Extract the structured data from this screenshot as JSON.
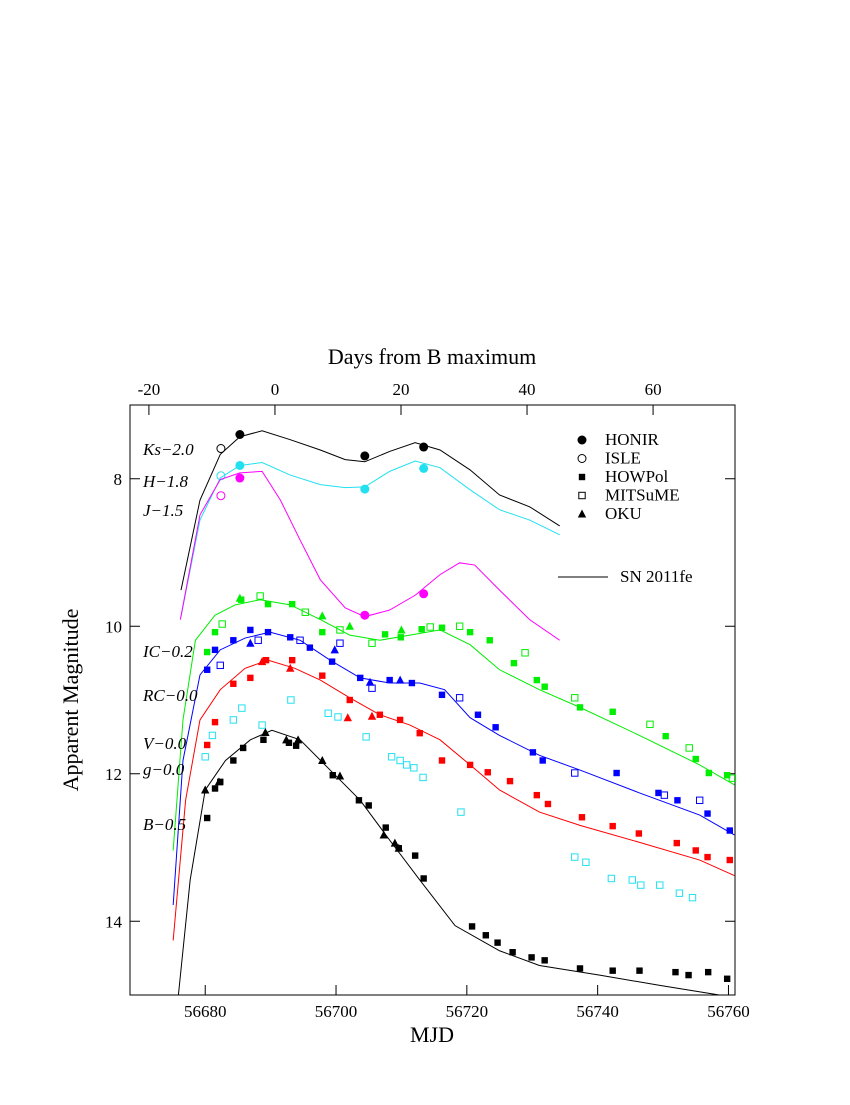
{
  "chart_data": {
    "type": "scatter",
    "xlabel": "MJD",
    "ylabel": "Apparent Magnitude",
    "x2label": "Days from B maximum",
    "xlim": [
      56668.5,
      56761
    ],
    "xticks": [
      56680,
      56700,
      56720,
      56740,
      56760
    ],
    "ylim": [
      15,
      7
    ],
    "yticks": [
      8,
      10,
      12,
      14
    ],
    "x2lim": [
      -23,
      73
    ],
    "x2ticks": [
      -20,
      0,
      20,
      40,
      60
    ],
    "instruments": [
      {
        "name": "HONIR",
        "marker": "filled-circle"
      },
      {
        "name": "ISLE",
        "marker": "open-circle"
      },
      {
        "name": "HOWPol",
        "marker": "filled-square"
      },
      {
        "name": "MITSuME",
        "marker": "open-square"
      },
      {
        "name": "OKU",
        "marker": "filled-triangle"
      }
    ],
    "model_name": "SN 2011fe",
    "bands": [
      {
        "label": "Ks−2.0",
        "color": "#000000",
        "model": {
          "x": [
            56676.3,
            56679.2,
            56682.3,
            56685.3,
            56688.7,
            56693.0,
            56697.6,
            56701.4,
            56704.4,
            56708.2,
            56712.1,
            56715.9,
            56720.5,
            56725.0,
            56729.6,
            56734.2
          ],
          "values": [
            9.51,
            8.29,
            7.67,
            7.43,
            7.35,
            7.47,
            7.61,
            7.74,
            7.77,
            7.63,
            7.51,
            7.61,
            7.88,
            8.22,
            8.38,
            8.64
          ]
        },
        "data": [
          {
            "instrument": 0,
            "x": [
              56685.3,
              56704.4,
              56713.4
            ],
            "values": [
              7.4,
              7.69,
              7.57
            ]
          },
          {
            "instrument": 1,
            "x": [
              56682.4
            ],
            "values": [
              7.59
            ]
          }
        ]
      },
      {
        "label": "H−1.8",
        "color": "#22e0f0",
        "model": {
          "x": [
            56676.3,
            56679.2,
            56682.3,
            56685.3,
            56688.7,
            56693.0,
            56697.6,
            56701.4,
            56704.4,
            56708.2,
            56712.1,
            56715.9,
            56720.5,
            56725.0,
            56729.6,
            56734.2
          ],
          "values": [
            9.87,
            8.56,
            7.99,
            7.82,
            7.78,
            7.95,
            8.08,
            8.12,
            8.11,
            7.9,
            7.76,
            7.85,
            8.15,
            8.42,
            8.56,
            8.76
          ]
        },
        "data": [
          {
            "instrument": 0,
            "x": [
              56685.3,
              56704.4,
              56713.4
            ],
            "values": [
              7.82,
              8.14,
              7.86
            ]
          },
          {
            "instrument": 1,
            "x": [
              56682.4
            ],
            "values": [
              7.96
            ]
          }
        ]
      },
      {
        "label": "J−1.5",
        "color": "#ff00ff",
        "model": {
          "x": [
            56676.2,
            56679.2,
            56682.3,
            56685.3,
            56688.7,
            56691.5,
            56694.5,
            56697.6,
            56701.4,
            56704.4,
            56708.2,
            56712.1,
            56715.9,
            56718.9,
            56721.2,
            56725.0,
            56729.6,
            56734.2
          ],
          "values": [
            9.91,
            8.49,
            8.01,
            7.92,
            7.9,
            8.29,
            8.83,
            9.37,
            9.75,
            9.87,
            9.78,
            9.58,
            9.3,
            9.14,
            9.17,
            9.51,
            9.91,
            10.19
          ]
        },
        "data": [
          {
            "instrument": 0,
            "x": [
              56685.3,
              56704.4,
              56713.4
            ],
            "values": [
              7.99,
              9.85,
              9.56
            ]
          },
          {
            "instrument": 1,
            "x": [
              56682.4
            ],
            "values": [
              8.23
            ]
          }
        ]
      },
      {
        "label": "IC−0.2",
        "color": "#00ee00",
        "model": {
          "x": [
            56675.1,
            56676.6,
            56678.5,
            56681.5,
            56684.6,
            56688.4,
            56693.0,
            56697.6,
            56702.1,
            56706.7,
            56711.3,
            56715.9,
            56720.5,
            56725.0,
            56731.1,
            56737.3,
            56746.4,
            56755.6,
            56760.9
          ],
          "values": [
            13.04,
            11.27,
            10.19,
            9.85,
            9.71,
            9.64,
            9.71,
            9.91,
            10.12,
            10.19,
            10.12,
            10.05,
            10.25,
            10.59,
            10.86,
            11.1,
            11.48,
            11.88,
            12.15
          ]
        },
        "data": [
          {
            "instrument": 2,
            "x": [
              56680.3,
              56681.5,
              56685.5,
              56689.6,
              56693.3,
              56697.9,
              56707.5,
              56709.9,
              56713.1,
              56716.2,
              56720.5,
              56723.5,
              56727.2,
              56730.7,
              56731.9,
              56737.3,
              56742.3,
              56750.4,
              56755.0,
              56757.0,
              56759.8
            ],
            "values": [
              10.35,
              10.08,
              9.64,
              9.7,
              9.7,
              10.08,
              10.11,
              10.15,
              10.04,
              10.02,
              10.08,
              10.19,
              10.5,
              10.73,
              10.82,
              11.1,
              11.16,
              11.49,
              11.8,
              11.99,
              12.02
            ]
          },
          {
            "instrument": 3,
            "x": [
              56682.6,
              56688.4,
              56695.3,
              56700.6,
              56705.5,
              56714.4,
              56718.9,
              56728.9,
              56736.5,
              56748.0,
              56754.0,
              56760.6
            ],
            "values": [
              9.97,
              9.59,
              9.81,
              10.05,
              10.23,
              10.01,
              10.0,
              10.36,
              10.97,
              11.33,
              11.65,
              12.06
            ]
          },
          {
            "instrument": 4,
            "x": [
              56685.3,
              56697.9,
              56702.1,
              56710.0
            ],
            "values": [
              9.62,
              9.86,
              10.0,
              10.05
            ]
          }
        ]
      },
      {
        "label": "RC−0.0",
        "color": "#0000ff",
        "model": {
          "x": [
            56675.1,
            56676.6,
            56679.2,
            56682.3,
            56686.1,
            56689.9,
            56694.5,
            56699.1,
            56703.7,
            56708.2,
            56712.8,
            56716.6,
            56720.5,
            56725.0,
            56731.1,
            56737.3,
            56746.4,
            56755.6,
            56760.9
          ],
          "values": [
            13.78,
            11.82,
            10.66,
            10.32,
            10.16,
            10.08,
            10.19,
            10.46,
            10.7,
            10.77,
            10.77,
            10.86,
            11.24,
            11.48,
            11.75,
            11.95,
            12.26,
            12.56,
            12.83
          ]
        },
        "data": [
          {
            "instrument": 2,
            "x": [
              56680.3,
              56681.5,
              56684.3,
              56686.9,
              56689.6,
              56693.0,
              56696.0,
              56699.4,
              56703.7,
              56708.2,
              56711.6,
              56716.2,
              56721.7,
              56724.4,
              56730.1,
              56731.6,
              56742.9,
              56749.3,
              56752.2,
              56756.8,
              56760.2
            ],
            "values": [
              10.59,
              10.32,
              10.19,
              10.05,
              10.08,
              10.15,
              10.29,
              10.48,
              10.7,
              10.73,
              10.77,
              10.93,
              11.2,
              11.37,
              11.71,
              11.82,
              11.99,
              12.26,
              12.36,
              12.54,
              12.77
            ]
          },
          {
            "instrument": 3,
            "x": [
              56682.3,
              56688.1,
              56694.5,
              56700.6,
              56705.5,
              56718.9,
              56736.5,
              56750.2,
              56755.6
            ],
            "values": [
              10.53,
              10.19,
              10.19,
              10.23,
              10.84,
              10.97,
              11.99,
              12.29,
              12.36
            ]
          },
          {
            "instrument": 4,
            "x": [
              56686.9,
              56699.8,
              56705.2,
              56709.8
            ],
            "values": [
              10.23,
              10.32,
              10.76,
              10.73
            ]
          }
        ]
      },
      {
        "label": "V−0.0",
        "color": "#ff0000",
        "model": {
          "x": [
            56675.1,
            56677.0,
            56679.2,
            56682.3,
            56686.1,
            56689.6,
            56693.7,
            56697.6,
            56702.1,
            56706.7,
            56711.3,
            56715.9,
            56720.5,
            56725.0,
            56731.1,
            56737.3,
            56746.4,
            56755.6,
            56760.9
          ],
          "values": [
            14.26,
            12.36,
            11.27,
            10.86,
            10.57,
            10.46,
            10.57,
            10.73,
            10.97,
            11.2,
            11.34,
            11.54,
            11.88,
            12.22,
            12.52,
            12.7,
            12.93,
            13.17,
            13.38
          ]
        },
        "data": [
          {
            "instrument": 2,
            "x": [
              56680.3,
              56681.5,
              56684.3,
              56686.9,
              56689.3,
              56693.3,
              56697.9,
              56702.1,
              56706.7,
              56709.8,
              56712.8,
              56716.2,
              56720.5,
              56723.2,
              56726.6,
              56730.7,
              56732.4,
              56737.6,
              56742.3,
              56746.3,
              56752.1,
              56755.0,
              56756.8,
              56760.2
            ],
            "values": [
              11.61,
              11.3,
              10.78,
              10.7,
              10.46,
              10.46,
              10.67,
              11.0,
              11.2,
              11.27,
              11.45,
              11.82,
              11.88,
              11.98,
              12.1,
              12.29,
              12.41,
              12.59,
              12.71,
              12.81,
              12.94,
              13.04,
              13.13,
              13.17
            ]
          },
          {
            "instrument": 4,
            "x": [
              56688.7,
              56693.0,
              56701.8,
              56705.5
            ],
            "values": [
              10.48,
              10.57,
              11.24,
              11.22
            ]
          }
        ]
      },
      {
        "label": "g−0.0",
        "color": "#22e0f0",
        "data": [
          {
            "instrument": 3,
            "x": [
              56680.0,
              56681.1,
              56684.3,
              56685.6,
              56688.7,
              56693.1,
              56698.8,
              56700.3,
              56704.6,
              56708.5,
              56709.8,
              56710.8,
              56711.9,
              56713.3,
              56719.1,
              56736.5,
              56738.2,
              56742.1,
              56745.3,
              56746.6,
              56749.5,
              56752.5,
              56754.5
            ],
            "values": [
              11.77,
              11.48,
              11.27,
              11.11,
              11.34,
              11.0,
              11.18,
              11.23,
              11.5,
              11.77,
              11.82,
              11.88,
              11.92,
              12.05,
              12.52,
              13.13,
              13.2,
              13.42,
              13.44,
              13.51,
              13.51,
              13.62,
              13.68
            ]
          }
        ]
      },
      {
        "label": "B−0.5",
        "color": "#000000",
        "model": {
          "x": [
            56675.9,
            56677.7,
            56680.0,
            56683.1,
            56686.9,
            56690.2,
            56694.5,
            56699.1,
            56703.7,
            56708.2,
            56712.8,
            56718.2,
            56725.0,
            56731.1,
            56740.3,
            56749.5,
            56758.6
          ],
          "values": [
            15.0,
            13.44,
            12.22,
            11.82,
            11.54,
            11.41,
            11.54,
            11.95,
            12.36,
            12.9,
            13.44,
            14.06,
            14.4,
            14.6,
            14.73,
            14.87,
            15.0
          ]
        },
        "data": [
          {
            "instrument": 2,
            "x": [
              56680.3,
              56681.5,
              56682.3,
              56684.3,
              56685.8,
              56688.9,
              56692.8,
              56693.9,
              56699.5,
              56703.5,
              56705.0,
              56707.6,
              56709.6,
              56712.1,
              56713.4,
              56720.8,
              56722.9,
              56724.7,
              56727.0,
              56729.9,
              56731.9,
              56737.3,
              56742.3,
              56746.4,
              56751.9,
              56753.9,
              56756.9,
              56759.8
            ],
            "values": [
              12.6,
              12.2,
              12.11,
              11.82,
              11.65,
              11.54,
              11.58,
              11.62,
              12.02,
              12.36,
              12.43,
              12.73,
              13.01,
              13.11,
              13.42,
              14.07,
              14.19,
              14.29,
              14.42,
              14.49,
              14.53,
              14.64,
              14.67,
              14.67,
              14.69,
              14.73,
              14.69,
              14.78
            ]
          },
          {
            "instrument": 4,
            "x": [
              56680.0,
              56682.1,
              56689.2,
              56692.4,
              56694.2,
              56697.9,
              56700.6,
              56707.3,
              56709.0,
              56709.6
            ],
            "values": [
              12.22,
              12.11,
              11.44,
              11.54,
              11.54,
              11.82,
              12.03,
              12.83,
              12.94,
              13.01
            ]
          }
        ]
      }
    ]
  }
}
